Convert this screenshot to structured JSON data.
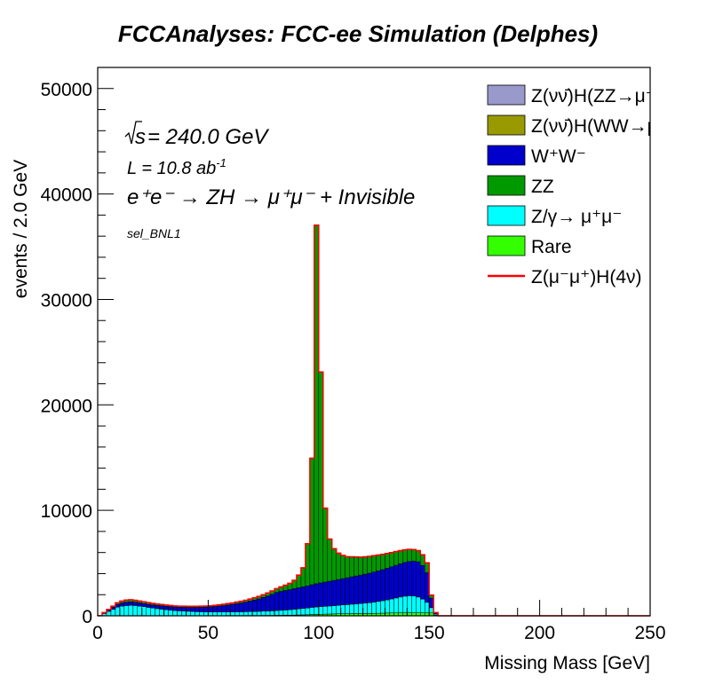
{
  "chart_data": {
    "type": "bar",
    "subtype": "stacked-histogram",
    "title": "FCCAnalyses: FCC-ee Simulation (Delphes)",
    "xlabel": "Missing Mass [GeV]",
    "ylabel": "events / 2.0 GeV",
    "xlim": [
      0,
      250
    ],
    "ylim": [
      0,
      52000
    ],
    "bin_width": 2,
    "x_ticks": [
      0,
      50,
      100,
      150,
      200,
      250
    ],
    "y_ticks": [
      0,
      10000,
      20000,
      30000,
      40000,
      50000
    ],
    "grid": false,
    "legend_position": "top-right",
    "annotations": {
      "sqrt_s": "√s",
      "energy": " = 240.0 GeV",
      "lumi_prefix": "L = 10.8 ab",
      "lumi_exp": "-1",
      "process": "e⁺e⁻ → ZH → μ⁺μ⁻ + Invisible",
      "selection": "sel_BNL1"
    },
    "x_bin_edges_start": 0,
    "series": [
      {
        "name": "Rare",
        "label": "Rare",
        "color": "#33ff00",
        "values": [
          0,
          20,
          20,
          20,
          20,
          20,
          20,
          20,
          20,
          20,
          20,
          20,
          20,
          20,
          20,
          20,
          20,
          20,
          20,
          20,
          20,
          20,
          20,
          20,
          20,
          20,
          20,
          20,
          20,
          30,
          30,
          30,
          30,
          30,
          30,
          30,
          30,
          40,
          40,
          40,
          50,
          50,
          60,
          60,
          70,
          80,
          90,
          100,
          120,
          140,
          150,
          160,
          170,
          180,
          190,
          200,
          200,
          210,
          210,
          210,
          220,
          220,
          230,
          240,
          250,
          260,
          270,
          270,
          280,
          280,
          280,
          280,
          280,
          280,
          280,
          270,
          80,
          0
        ]
      },
      {
        "name": "Z/gamma",
        "label": "Z/γ→ μ⁺μ⁻",
        "color": "#00ffff",
        "values": [
          10,
          200,
          400,
          600,
          800,
          900,
          950,
          980,
          950,
          900,
          850,
          780,
          720,
          660,
          610,
          560,
          520,
          480,
          450,
          430,
          410,
          390,
          370,
          360,
          350,
          340,
          340,
          340,
          340,
          340,
          340,
          350,
          350,
          360,
          370,
          380,
          390,
          400,
          410,
          430,
          450,
          470,
          490,
          520,
          550,
          580,
          610,
          640,
          680,
          700,
          720,
          740,
          760,
          780,
          800,
          830,
          860,
          890,
          920,
          950,
          980,
          1020,
          1070,
          1120,
          1180,
          1250,
          1330,
          1420,
          1500,
          1580,
          1620,
          1600,
          1500,
          1300,
          1000,
          500,
          100,
          0
        ]
      },
      {
        "name": "W+W-",
        "label": "W⁺W⁻",
        "color": "#0000cc",
        "values": [
          0,
          50,
          120,
          200,
          260,
          300,
          320,
          320,
          310,
          300,
          290,
          290,
          290,
          300,
          310,
          320,
          330,
          340,
          350,
          360,
          370,
          390,
          410,
          430,
          460,
          490,
          520,
          560,
          600,
          650,
          700,
          760,
          830,
          900,
          990,
          1080,
          1180,
          1300,
          1430,
          1570,
          1720,
          1800,
          1850,
          1900,
          1950,
          2000,
          2050,
          2100,
          2150,
          2200,
          2250,
          2300,
          2350,
          2400,
          2450,
          2500,
          2550,
          2600,
          2650,
          2700,
          2750,
          2800,
          2850,
          2900,
          2950,
          3000,
          3050,
          3100,
          3150,
          3200,
          3250,
          3300,
          3350,
          3200,
          2800,
          900,
          100,
          0
        ]
      },
      {
        "name": "ZZ",
        "label": "ZZ",
        "color": "#009900",
        "values": [
          0,
          30,
          60,
          100,
          150,
          180,
          200,
          200,
          190,
          180,
          170,
          160,
          150,
          140,
          130,
          120,
          110,
          100,
          100,
          100,
          100,
          100,
          100,
          100,
          100,
          100,
          110,
          120,
          130,
          140,
          150,
          160,
          170,
          180,
          200,
          220,
          240,
          260,
          290,
          320,
          360,
          420,
          500,
          600,
          800,
          1200,
          1800,
          4000,
          12000,
          34000,
          20000,
          7000,
          4000,
          3000,
          2500,
          2200,
          2000,
          1900,
          1800,
          1700,
          1650,
          1600,
          1550,
          1500,
          1450,
          1400,
          1350,
          1300,
          1250,
          1200,
          1150,
          1100,
          1050,
          1000,
          950,
          300,
          20,
          0
        ]
      },
      {
        "name": "ZH-WW",
        "label": "Z(νν̄)H(WW→μ⁺νμ⁻ν̄)",
        "color": "#999900",
        "values": [
          0,
          0,
          0,
          0,
          0,
          0,
          0,
          0,
          0,
          0,
          0,
          0,
          0,
          0,
          0,
          0,
          0,
          0,
          0,
          0,
          0,
          0,
          0,
          0,
          0,
          0,
          0,
          0,
          0,
          0,
          0,
          0,
          0,
          0,
          0,
          0,
          0,
          0,
          0,
          0,
          0,
          0,
          0,
          0,
          0,
          0,
          0,
          0,
          0,
          0,
          0,
          0,
          0,
          0,
          0,
          0,
          0,
          0,
          0,
          0,
          0,
          0,
          0,
          0,
          0,
          0,
          0,
          0,
          0,
          0,
          0,
          0,
          0,
          0,
          0,
          0,
          0,
          0
        ]
      },
      {
        "name": "ZH-ZZ",
        "label": "Z(νν̄)H(ZZ→μ⁺μ⁻νν̄)",
        "color": "#9999cc",
        "values": [
          0,
          0,
          0,
          0,
          0,
          0,
          0,
          0,
          0,
          0,
          0,
          0,
          0,
          0,
          0,
          0,
          0,
          0,
          0,
          0,
          0,
          0,
          0,
          0,
          0,
          0,
          0,
          0,
          0,
          0,
          0,
          0,
          0,
          0,
          0,
          0,
          0,
          0,
          0,
          0,
          0,
          0,
          0,
          0,
          0,
          0,
          0,
          0,
          0,
          0,
          0,
          0,
          0,
          0,
          0,
          0,
          0,
          0,
          0,
          0,
          0,
          0,
          0,
          0,
          0,
          0,
          0,
          0,
          0,
          0,
          0,
          0,
          0,
          0,
          0,
          0,
          0,
          0
        ]
      }
    ],
    "signal": {
      "name": "ZH-4nu",
      "label": "Z(μ⁻μ⁺)H(4ν)",
      "color": "#ff0000",
      "line": true
    },
    "legend_entries": [
      {
        "key": "ZH-ZZ",
        "label": "Z(νν̄)H(ZZ→μ⁺μ⁻νν̄)",
        "color": "#9999cc"
      },
      {
        "key": "ZH-WW",
        "label": "Z(νν̄)H(WW→μ⁺νμ⁻ν̄)",
        "color": "#999900"
      },
      {
        "key": "W+W-",
        "label": "W⁺W⁻",
        "color": "#0000cc"
      },
      {
        "key": "ZZ",
        "label": "ZZ",
        "color": "#009900"
      },
      {
        "key": "Z/gamma",
        "label": "Z/γ→ μ⁺μ⁻",
        "color": "#00ffff"
      },
      {
        "key": "Rare",
        "label": "Rare",
        "color": "#33ff00"
      },
      {
        "key": "ZH-4nu",
        "label": "Z(μ⁻μ⁺)H(4ν)",
        "color": "#ff0000",
        "line": true
      }
    ]
  }
}
